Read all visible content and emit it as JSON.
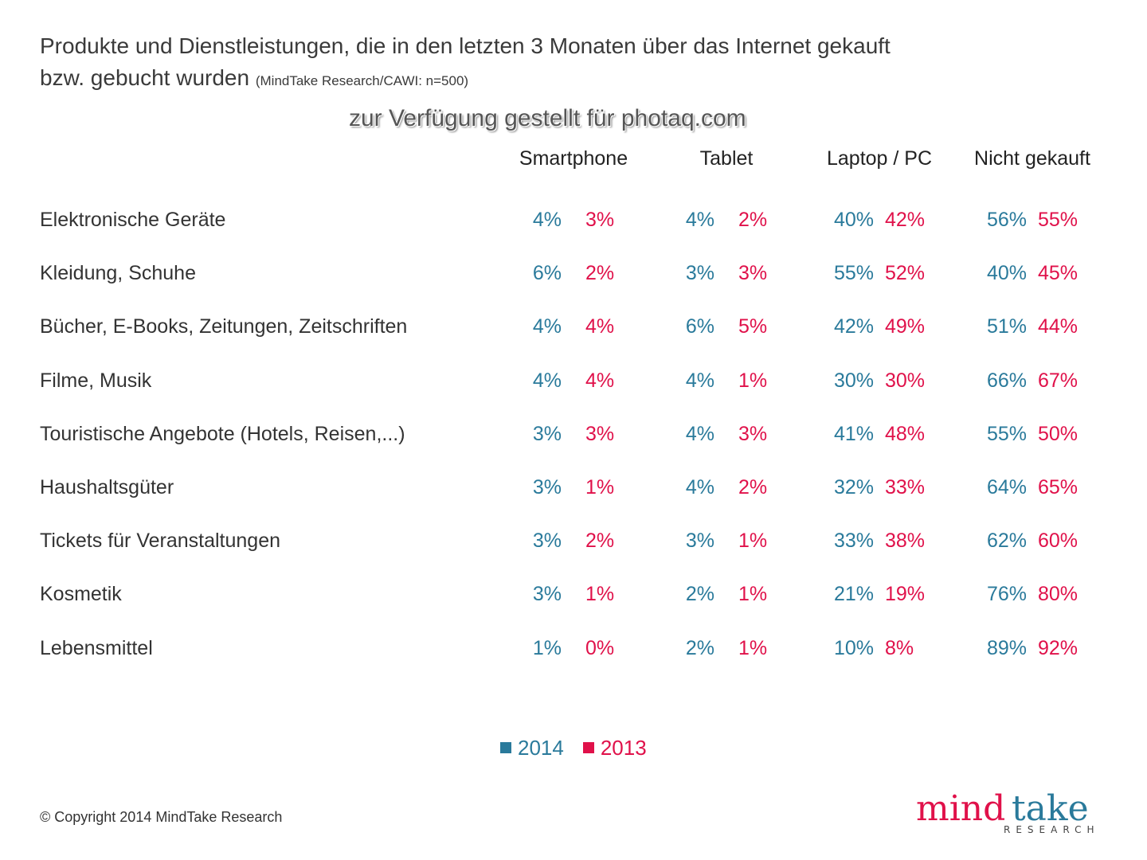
{
  "chart_data": {
    "type": "table",
    "title": "Produkte und Dienstleistungen, die in den letzten 3 Monaten über das Internet gekauft",
    "title_line2": "bzw. gebucht wurden",
    "subtitle": "(MindTake Research/CAWI: n=500)",
    "columns": [
      "Smartphone",
      "Tablet",
      "Laptop / PC",
      "Nicht gekauft"
    ],
    "series": [
      {
        "name": "2014",
        "color": "#2a7a9b"
      },
      {
        "name": "2013",
        "color": "#e0114a"
      }
    ],
    "rows": [
      {
        "label": "Elektronische Geräte",
        "values": [
          [
            "4%",
            "3%"
          ],
          [
            "4%",
            "2%"
          ],
          [
            "40%",
            "42%"
          ],
          [
            "56%",
            "55%"
          ]
        ]
      },
      {
        "label": "Kleidung, Schuhe",
        "values": [
          [
            "6%",
            "2%"
          ],
          [
            "3%",
            "3%"
          ],
          [
            "55%",
            "52%"
          ],
          [
            "40%",
            "45%"
          ]
        ]
      },
      {
        "label": "Bücher, E-Books, Zeitungen, Zeitschriften",
        "values": [
          [
            "4%",
            "4%"
          ],
          [
            "6%",
            "5%"
          ],
          [
            "42%",
            "49%"
          ],
          [
            "51%",
            "44%"
          ]
        ]
      },
      {
        "label": "Filme, Musik",
        "values": [
          [
            "4%",
            "4%"
          ],
          [
            "4%",
            "1%"
          ],
          [
            "30%",
            "30%"
          ],
          [
            "66%",
            "67%"
          ]
        ]
      },
      {
        "label": "Touristische Angebote (Hotels, Reisen,...)",
        "values": [
          [
            "3%",
            "3%"
          ],
          [
            "4%",
            "3%"
          ],
          [
            "41%",
            "48%"
          ],
          [
            "55%",
            "50%"
          ]
        ]
      },
      {
        "label": "Haushaltsgüter",
        "values": [
          [
            "3%",
            "1%"
          ],
          [
            "4%",
            "2%"
          ],
          [
            "32%",
            "33%"
          ],
          [
            "64%",
            "65%"
          ]
        ]
      },
      {
        "label": "Tickets für Veranstaltungen",
        "values": [
          [
            "3%",
            "2%"
          ],
          [
            "3%",
            "1%"
          ],
          [
            "33%",
            "38%"
          ],
          [
            "62%",
            "60%"
          ]
        ]
      },
      {
        "label": "Kosmetik",
        "values": [
          [
            "3%",
            "1%"
          ],
          [
            "2%",
            "1%"
          ],
          [
            "21%",
            "19%"
          ],
          [
            "76%",
            "80%"
          ]
        ]
      },
      {
        "label": "Lebensmittel",
        "values": [
          [
            "1%",
            "0%"
          ],
          [
            "2%",
            "1%"
          ],
          [
            "10%",
            "8%"
          ],
          [
            "89%",
            "92%"
          ]
        ]
      }
    ],
    "legend": "bottom-center"
  },
  "footer": {
    "copyright": "© Copyright 2014 MindTake Research",
    "logo": "mindtake RESEARCH"
  },
  "watermark": "zur Verfügung gestellt für photaq.com"
}
